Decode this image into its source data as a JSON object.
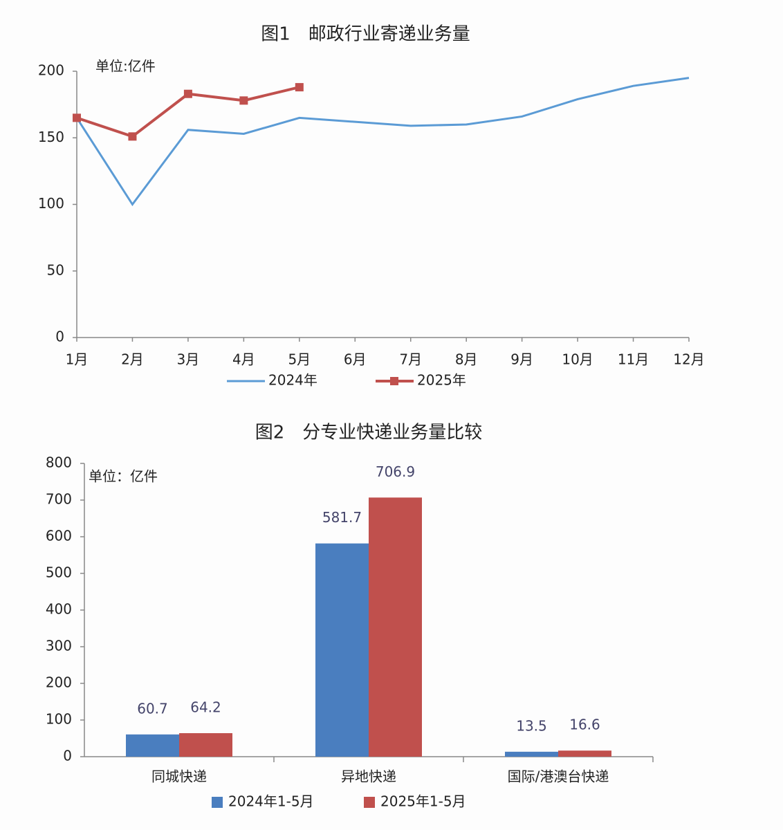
{
  "chart_data": [
    {
      "type": "line",
      "title": "图1　邮政行业寄递业务量",
      "unit": "单位:亿件",
      "categories": [
        "1月",
        "2月",
        "3月",
        "4月",
        "5月",
        "6月",
        "7月",
        "8月",
        "9月",
        "10月",
        "11月",
        "12月"
      ],
      "series": [
        {
          "name": "2024年",
          "color": "#5b9bd5",
          "values": [
            165,
            100,
            156,
            153,
            165,
            162,
            159,
            160,
            166,
            179,
            189,
            195
          ]
        },
        {
          "name": "2025年",
          "color": "#c0504d",
          "values": [
            165,
            151,
            183,
            178,
            188,
            null,
            null,
            null,
            null,
            null,
            null,
            null
          ]
        }
      ],
      "ylim": [
        0,
        200
      ],
      "yticks": [
        0,
        50,
        100,
        150,
        200
      ],
      "grid": false,
      "legend": "bottom"
    },
    {
      "type": "bar",
      "title": "图2　分专业快递业务量比较",
      "unit": "单位：亿件",
      "categories": [
        "同城快递",
        "异地快递",
        "国际/港澳台快递"
      ],
      "series": [
        {
          "name": "2024年1-5月",
          "color": "#4a7ebf",
          "values": [
            60.7,
            581.7,
            13.5
          ]
        },
        {
          "name": "2025年1-5月",
          "color": "#c0504d",
          "values": [
            64.2,
            706.9,
            16.6
          ]
        }
      ],
      "ylim": [
        0,
        800
      ],
      "yticks": [
        0,
        100,
        200,
        300,
        400,
        500,
        600,
        700,
        800
      ],
      "grid": false,
      "legend": "bottom"
    }
  ]
}
